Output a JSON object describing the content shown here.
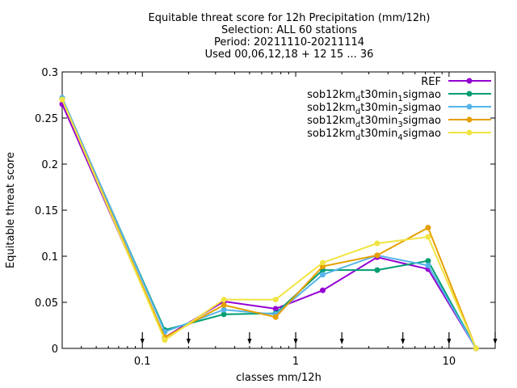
{
  "chart_data": {
    "type": "line",
    "title_lines": [
      "Equitable threat score  for 12h Precipitation (mm/12h)",
      "Selection: ALL     60 stations",
      "Period: 20211110-20211114",
      "Used 00,06,12,18 + 12 15 ... 36"
    ],
    "xlabel": "classes mm/12h",
    "ylabel": "Equitable threat score",
    "x_scale": "log",
    "xlim": [
      0.03,
      20
    ],
    "ylim": [
      0,
      0.3
    ],
    "x_ticks": [
      {
        "v": 0.1,
        "label": "0.1"
      },
      {
        "v": 1,
        "label": "1"
      },
      {
        "v": 10,
        "label": "10"
      }
    ],
    "y_ticks": [
      {
        "v": 0,
        "label": "0"
      },
      {
        "v": 0.05,
        "label": "0.05"
      },
      {
        "v": 0.1,
        "label": "0.1"
      },
      {
        "v": 0.15,
        "label": "0.15"
      },
      {
        "v": 0.2,
        "label": "0.2"
      },
      {
        "v": 0.25,
        "label": "0.25"
      },
      {
        "v": 0.3,
        "label": "0.3"
      }
    ],
    "x": [
      0.03,
      0.14,
      0.34,
      0.74,
      1.5,
      3.4,
      7.3,
      15
    ],
    "arrow_markers": [
      0.1,
      0.2,
      0.5,
      1,
      2,
      5,
      10,
      20
    ],
    "series": [
      {
        "name": "REF",
        "sub": "",
        "suffix": "",
        "color": "#9400d3",
        "values": [
          0.265,
          0.012,
          0.051,
          0.043,
          0.063,
          0.099,
          0.086,
          0.0
        ]
      },
      {
        "name": "sob12km",
        "sub": "d",
        "suffix": "t30min",
        "sub2": "1",
        "tail": "sigmao",
        "color": "#009e73",
        "values": [
          0.271,
          0.02,
          0.037,
          0.038,
          0.085,
          0.085,
          0.095,
          0.0
        ]
      },
      {
        "name": "sob12km",
        "sub": "d",
        "suffix": "t30min",
        "sub2": "2",
        "tail": "sigmao",
        "color": "#56b4e9",
        "values": [
          0.272,
          0.018,
          0.042,
          0.037,
          0.08,
          0.101,
          0.09,
          0.0
        ]
      },
      {
        "name": "sob12km",
        "sub": "d",
        "suffix": "t30min",
        "sub2": "3",
        "tail": "sigmao",
        "color": "#e69f00",
        "values": [
          0.27,
          0.012,
          0.047,
          0.034,
          0.089,
          0.101,
          0.131,
          0.0
        ]
      },
      {
        "name": "sob12km",
        "sub": "d",
        "suffix": "t30min",
        "sub2": "4",
        "tail": "sigmao",
        "color": "#f0e442",
        "values": [
          0.27,
          0.009,
          0.053,
          0.053,
          0.093,
          0.114,
          0.121,
          0.0
        ]
      }
    ]
  }
}
